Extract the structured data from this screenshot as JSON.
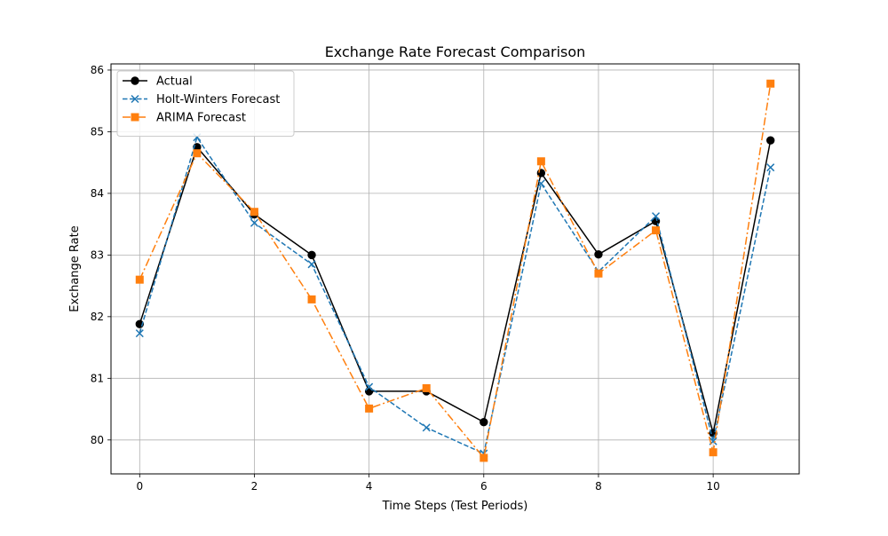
{
  "chart_data": {
    "type": "line",
    "title": "Exchange Rate Forecast Comparison",
    "xlabel": "Time Steps (Test Periods)",
    "ylabel": "Exchange Rate",
    "x": [
      0,
      1,
      2,
      3,
      4,
      5,
      6,
      7,
      8,
      9,
      10,
      11
    ],
    "xlim": [
      -0.5,
      11.5
    ],
    "ylim": [
      79.45,
      86.1
    ],
    "xticks": [
      0,
      2,
      4,
      6,
      8,
      10
    ],
    "yticks": [
      80,
      81,
      82,
      83,
      84,
      85,
      86
    ],
    "grid": true,
    "legend_position": "upper-left",
    "series": [
      {
        "name": "Actual",
        "values": [
          81.88,
          84.75,
          83.66,
          83.0,
          80.79,
          80.79,
          80.29,
          84.33,
          83.01,
          83.55,
          80.11,
          84.86
        ],
        "color": "#000000",
        "marker": "circle",
        "linestyle": "solid"
      },
      {
        "name": "Holt-Winters Forecast",
        "values": [
          81.73,
          84.91,
          83.52,
          82.85,
          80.86,
          80.2,
          79.78,
          84.16,
          82.73,
          83.63,
          79.98,
          84.42
        ],
        "color": "#1f77b4",
        "marker": "x",
        "linestyle": "dashed"
      },
      {
        "name": "ARIMA Forecast",
        "values": [
          82.6,
          84.65,
          83.7,
          82.28,
          80.51,
          80.84,
          79.71,
          84.52,
          82.7,
          83.4,
          79.8,
          85.78
        ],
        "color": "#ff7f0e",
        "marker": "square",
        "linestyle": "dashdot"
      }
    ]
  }
}
